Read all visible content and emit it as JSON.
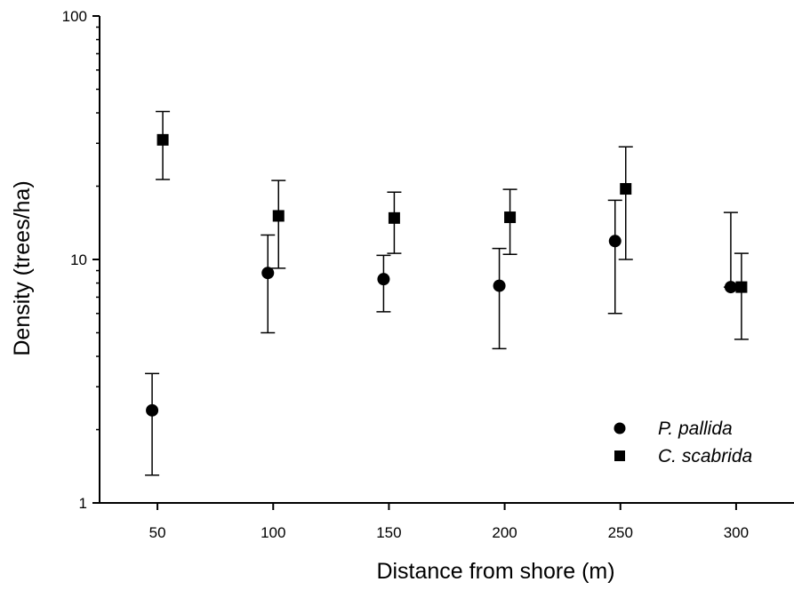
{
  "chart_data": {
    "type": "scatter",
    "title": "",
    "xlabel": "Distance from shore (m)",
    "ylabel": "Density (trees/ha)",
    "x_categories": [
      "50",
      "100",
      "150",
      "200",
      "250",
      "300"
    ],
    "xlim": [
      25,
      325
    ],
    "ylim": [
      1,
      100
    ],
    "y_scale": "log",
    "y_ticks": [
      1,
      10,
      100
    ],
    "y_tick_labels": [
      "1",
      "10",
      "100"
    ],
    "grid": false,
    "legend_position": "bottom-right",
    "error_bars": "asymmetric",
    "series": [
      {
        "name": "P. pallida",
        "marker": "circle",
        "x": [
          50,
          100,
          150,
          200,
          250,
          300
        ],
        "y": [
          2.4,
          8.8,
          8.3,
          7.8,
          11.9,
          7.7
        ],
        "y_lower": [
          1.3,
          5.0,
          6.1,
          4.3,
          6.0,
          7.7
        ],
        "y_upper": [
          3.4,
          12.6,
          10.4,
          11.1,
          17.5,
          15.6
        ]
      },
      {
        "name": "C. scabrida",
        "marker": "square",
        "x": [
          50,
          100,
          150,
          200,
          250,
          300
        ],
        "y": [
          31.0,
          15.1,
          14.8,
          14.9,
          19.5,
          7.7
        ],
        "y_lower": [
          21.3,
          9.2,
          10.6,
          10.5,
          10.0,
          4.7
        ],
        "y_upper": [
          40.5,
          21.1,
          18.9,
          19.4,
          29.0,
          10.6
        ]
      }
    ]
  }
}
